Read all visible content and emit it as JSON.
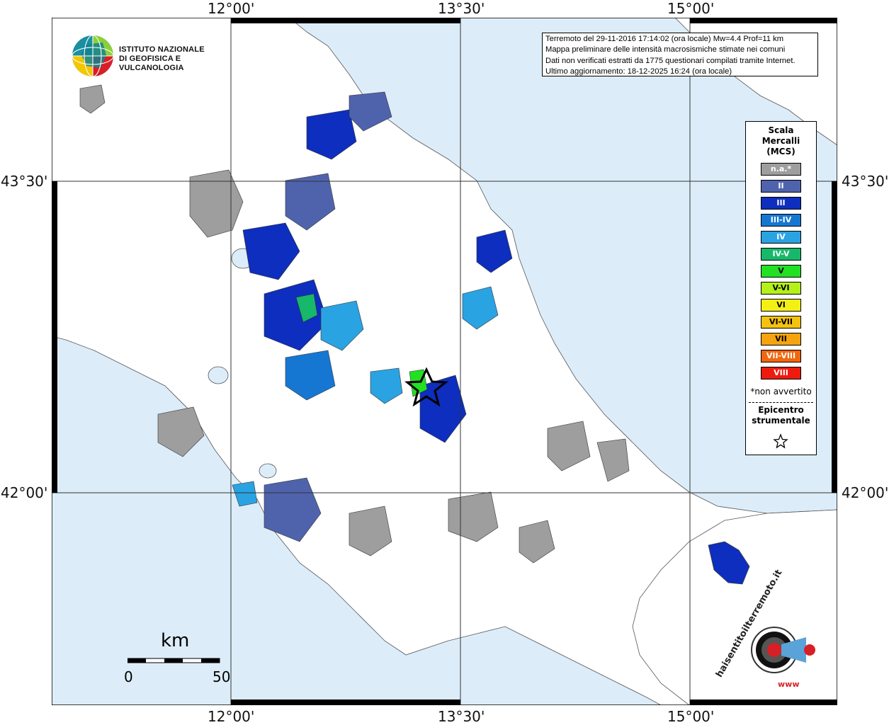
{
  "map": {
    "top_ticks": [
      "12°00'",
      "13°30'",
      "15°00'"
    ],
    "bottom_ticks": [
      "12°00'",
      "13°30'",
      "15°00'"
    ],
    "left_ticks": [
      "43°30'",
      "42°00'"
    ],
    "right_ticks": [
      "43°30'",
      "42°00'"
    ],
    "colors": {
      "sea": "#dcedf9",
      "land": "#ffffff",
      "na": "#9e9e9e",
      "II": "#4f63ad",
      "III": "#0d2ebe",
      "III-IV": "#1677d3",
      "IV": "#2aa3e3"
    }
  },
  "info": {
    "line1": "Terremoto del 29-11-2016 17:14:02 (ora locale) Mw=4.4 Prof=11 km",
    "line2": "Mappa preliminare delle intensità macrosismiche stimate nei comuni",
    "line3": "Dati non verificati estratti da 1775 questionari compilati tramite Internet.",
    "line4": "Ultimo aggiornamento: 18-12-2025 16:24 (ora locale)"
  },
  "legend": {
    "title1": "Scala",
    "title2": "Mercalli",
    "title3": "(MCS)",
    "items": [
      {
        "label": "n.a.*",
        "color": "#9e9e9e"
      },
      {
        "label": "II",
        "color": "#4f63ad"
      },
      {
        "label": "III",
        "color": "#0d2ebe"
      },
      {
        "label": "III-IV",
        "color": "#1677d3"
      },
      {
        "label": "IV",
        "color": "#2aa3e3"
      },
      {
        "label": "IV-V",
        "color": "#17b86a"
      },
      {
        "label": "V",
        "color": "#22e022"
      },
      {
        "label": "V-VI",
        "color": "#b4f01a"
      },
      {
        "label": "VI",
        "color": "#f5f013"
      },
      {
        "label": "VI-VII",
        "color": "#f5c211"
      },
      {
        "label": "VII",
        "color": "#f7a30f"
      },
      {
        "label": "VII-VIII",
        "color": "#f2670e"
      },
      {
        "label": "VIII",
        "color": "#ee1a0e"
      }
    ],
    "note": "*non avvertito",
    "epicenter_label1": "Epicentro",
    "epicenter_label2": "strumentale"
  },
  "logo_ingv": {
    "line1": "ISTITUTO NAZIONALE",
    "line2": "DI GEOFISICA E VULCANOLOGIA"
  },
  "logo_hsit": {
    "text": "haisentitoilterremoto.it",
    "url": "www"
  },
  "scale": {
    "unit": "km",
    "min": "0",
    "max": "50"
  }
}
